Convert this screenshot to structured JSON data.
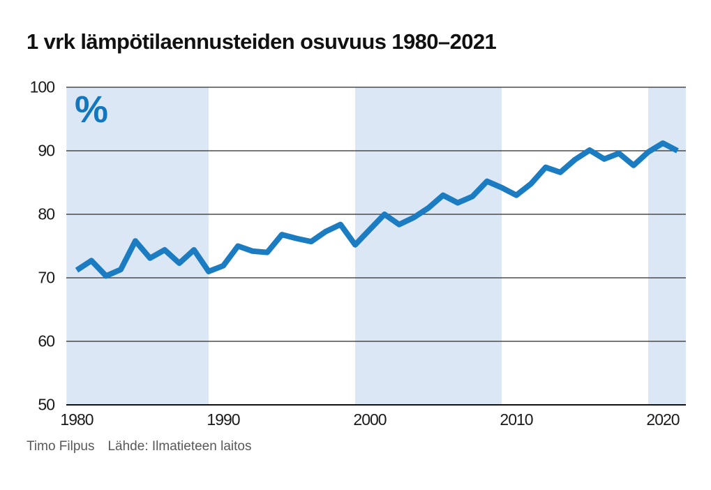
{
  "title": "1 vrk lämpötilaennusteiden osuvuus 1980–2021",
  "unit_label": "%",
  "footer": {
    "author": "Timo Filpus",
    "source": "Lähde: Ilmatieteen laitos"
  },
  "colors": {
    "line": "#1b7cc2",
    "band": "#dbe7f4",
    "unit_label": "#1277bd",
    "gridline": "#4b4b4b",
    "axis": "#111111",
    "tick_text": "#1a1a1a",
    "footer_text": "#595959",
    "background": "#ffffff"
  },
  "chart_data": {
    "type": "line",
    "title": "1 vrk lämpötilaennusteiden osuvuus 1980–2021",
    "xlabel": "",
    "ylabel": "%",
    "ylim": [
      50,
      100
    ],
    "yticks": [
      50,
      60,
      70,
      80,
      90,
      100
    ],
    "xticks": [
      1980,
      1990,
      2000,
      2010,
      2020
    ],
    "grid": "horizontal",
    "legend": "none",
    "shaded_year_bands": [
      [
        1979.3,
        1989
      ],
      [
        1999,
        2009
      ],
      [
        2019,
        2021.6
      ]
    ],
    "x": [
      1980,
      1981,
      1982,
      1983,
      1984,
      1985,
      1986,
      1987,
      1988,
      1989,
      1990,
      1991,
      1992,
      1993,
      1994,
      1995,
      1996,
      1997,
      1998,
      1999,
      2000,
      2001,
      2002,
      2003,
      2004,
      2005,
      2006,
      2007,
      2008,
      2009,
      2010,
      2011,
      2012,
      2013,
      2014,
      2015,
      2016,
      2017,
      2018,
      2019,
      2020,
      2021
    ],
    "values": [
      71.2,
      72.7,
      70.3,
      71.3,
      75.8,
      73.1,
      74.4,
      72.3,
      74.4,
      71.0,
      71.9,
      75.0,
      74.2,
      74.0,
      76.8,
      76.2,
      75.7,
      77.3,
      78.4,
      75.2,
      77.6,
      80.0,
      78.4,
      79.5,
      81.0,
      83.0,
      81.8,
      82.8,
      85.2,
      84.2,
      83.0,
      84.8,
      87.4,
      86.6,
      88.6,
      90.1,
      88.7,
      89.6,
      87.7,
      89.8,
      91.2,
      90.0
    ]
  }
}
